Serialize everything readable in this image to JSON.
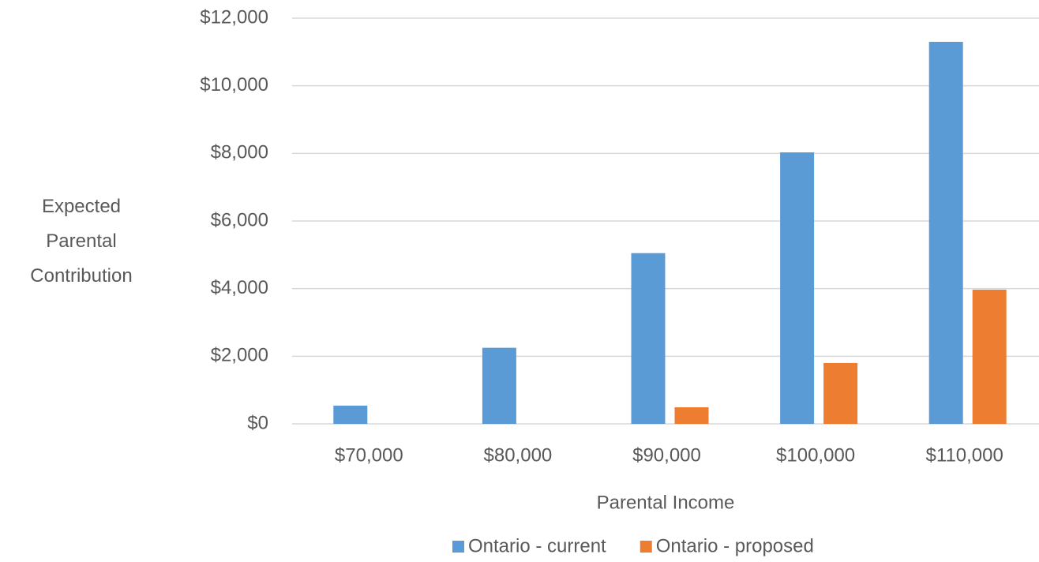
{
  "chart_data": {
    "type": "bar",
    "y_label": "Expected Parental Contribution",
    "x_label": "Parental Income",
    "categories": [
      "$70,000",
      "$80,000",
      "$90,000",
      "$100,000",
      "$110,000"
    ],
    "series": [
      {
        "name": "Ontario - current",
        "color": "#5b9bd5",
        "values": [
          540,
          2250,
          5050,
          8030,
          11300
        ]
      },
      {
        "name": "Ontario - proposed",
        "color": "#ed7d31",
        "values": [
          0,
          0,
          490,
          1800,
          3970
        ]
      }
    ],
    "ylim": [
      0,
      12000
    ],
    "yticks": [
      {
        "value": 0,
        "label": "$0"
      },
      {
        "value": 2000,
        "label": "$2,000"
      },
      {
        "value": 4000,
        "label": "$4,000"
      },
      {
        "value": 6000,
        "label": "$6,000"
      },
      {
        "value": 8000,
        "label": "$8,000"
      },
      {
        "value": 10000,
        "label": "$10,000"
      },
      {
        "value": 12000,
        "label": "$12,000"
      }
    ],
    "grid": true,
    "legend": "bottom"
  }
}
